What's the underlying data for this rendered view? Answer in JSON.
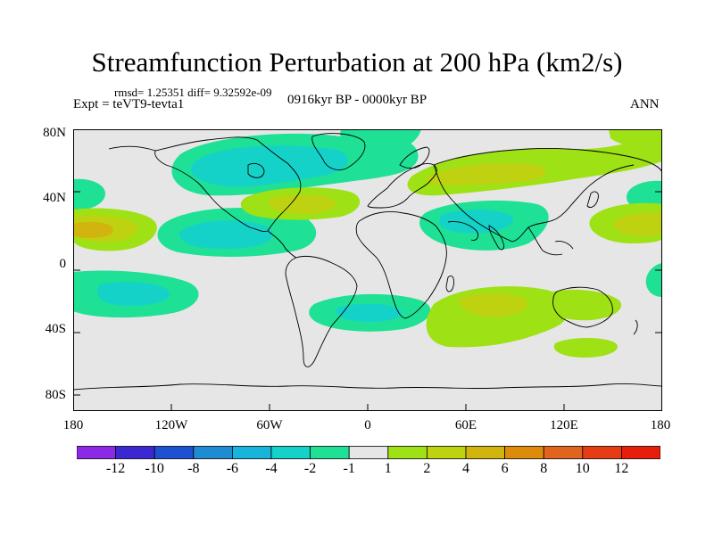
{
  "title": "Streamfunction Perturbation at 200 hPa (km2/s)",
  "stats": "rmsd= 1.25351 diff= 9.32592e-09",
  "experiment": "Expt = teVT9-tevta1",
  "period": "0916kyr BP - 0000kyr BP",
  "season": "ANN",
  "lat_labels": [
    "80N",
    "40N",
    "0",
    "40S",
    "80S"
  ],
  "lon_labels": [
    "180",
    "120W",
    "60W",
    "0",
    "60E",
    "120E",
    "180"
  ],
  "colorbar": {
    "labels": [
      "-12",
      "-10",
      "-8",
      "-6",
      "-4",
      "-2",
      "-1",
      "1",
      "2",
      "4",
      "6",
      "8",
      "10",
      "12"
    ],
    "colors": [
      "#8c28e6",
      "#3c28d2",
      "#1e50d2",
      "#1e8cd2",
      "#18b4dc",
      "#14d2c8",
      "#1ee196",
      "#e6e6e6",
      "#9ee114",
      "#bed212",
      "#d2b40e",
      "#dc8c0a",
      "#e1641e",
      "#e63c14",
      "#e61e0a"
    ]
  },
  "map_data": {
    "type": "filled-contour",
    "field": "streamfunction perturbation",
    "level_hpa": 200,
    "units": "km2/s",
    "lon_range": [
      -180,
      180
    ],
    "lat_range": [
      -90,
      90
    ],
    "features": [
      {
        "sign": "negative",
        "center": [
          -85,
          62
        ],
        "peak": -4
      },
      {
        "sign": "negative",
        "center": [
          -150,
          33
        ],
        "peak": -2
      },
      {
        "sign": "negative",
        "center": [
          -150,
          -22
        ],
        "peak": -2
      },
      {
        "sign": "negative",
        "center": [
          -110,
          20
        ],
        "peak": -2
      },
      {
        "sign": "negative",
        "center": [
          -3,
          -28
        ],
        "peak": -2
      },
      {
        "sign": "negative",
        "center": [
          70,
          28
        ],
        "peak": -2
      },
      {
        "sign": "negative",
        "center": [
          170,
          40
        ],
        "peak": -2
      },
      {
        "sign": "positive",
        "center": [
          -170,
          18
        ],
        "peak": 4
      },
      {
        "sign": "positive",
        "center": [
          -50,
          38
        ],
        "peak": 2
      },
      {
        "sign": "positive",
        "center": [
          70,
          48
        ],
        "peak": 2
      },
      {
        "sign": "positive",
        "center": [
          80,
          -25
        ],
        "peak": 2
      },
      {
        "sign": "positive",
        "center": [
          170,
          18
        ],
        "peak": 2
      },
      {
        "sign": "positive",
        "center": [
          165,
          70
        ],
        "peak": 2
      }
    ]
  }
}
